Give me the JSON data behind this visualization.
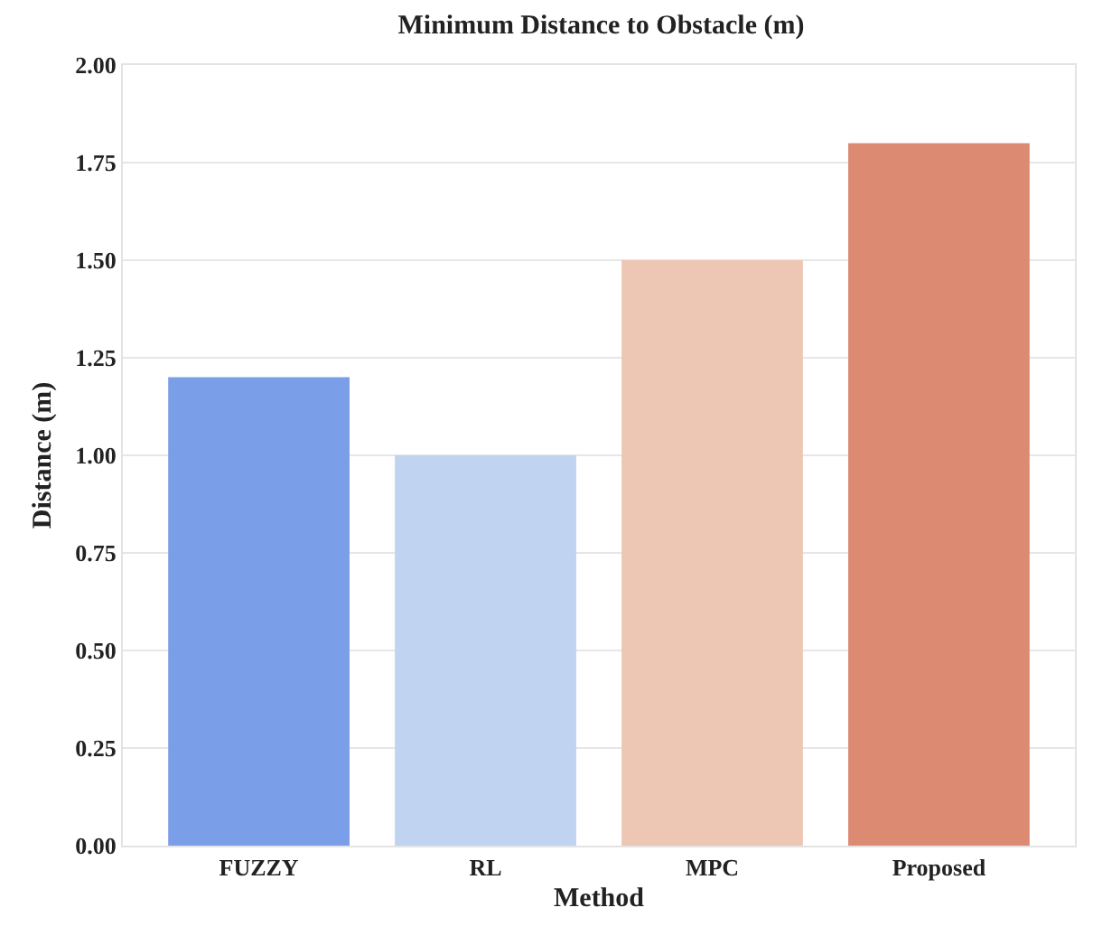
{
  "chart_data": {
    "type": "bar",
    "title": "Minimum Distance to Obstacle (m)",
    "xlabel": "Method",
    "ylabel": "Distance (m)",
    "categories": [
      "FUZZY",
      "RL",
      "MPC",
      "Proposed"
    ],
    "values": [
      1.2,
      1.0,
      1.5,
      1.8
    ],
    "colors": [
      "#7b9ee8",
      "#c0d3f0",
      "#eec6b4",
      "#dc8b72"
    ],
    "ylim": [
      0,
      2
    ],
    "yticks": [
      {
        "value": 0,
        "label": "0.00"
      },
      {
        "value": 0.25,
        "label": "0.25"
      },
      {
        "value": 0.5,
        "label": "0.50"
      },
      {
        "value": 0.75,
        "label": "0.75"
      },
      {
        "value": 1,
        "label": "1.00"
      },
      {
        "value": 1.25,
        "label": "1.25"
      },
      {
        "value": 1.5,
        "label": "1.50"
      },
      {
        "value": 1.75,
        "label": "1.75"
      },
      {
        "value": 2,
        "label": "2.00"
      }
    ],
    "grid": "y",
    "legend": false
  }
}
